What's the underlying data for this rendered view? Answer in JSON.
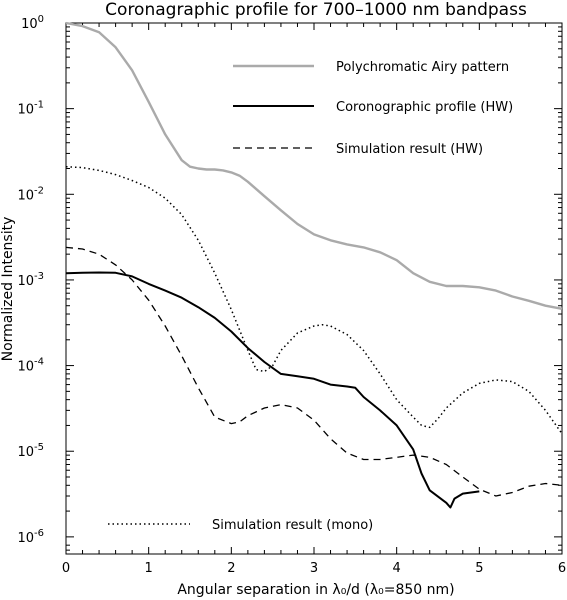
{
  "chart_data": {
    "type": "line",
    "title": "Coronagraphic profile for 700–1000 nm bandpass",
    "xlabel": "Angular separation in λ₀/d (λ₀=850 nm)",
    "ylabel": "Normalized Intensity",
    "xlim": [
      0,
      6
    ],
    "ylim_log10": [
      -6.2,
      0
    ],
    "yscale": "log",
    "grid": false,
    "x_ticks": [
      0,
      1,
      2,
      3,
      4,
      5,
      6
    ],
    "x_tick_labels": [
      "0",
      "1",
      "2",
      "3",
      "4",
      "5",
      "6"
    ],
    "y_ticks_log10": [
      0,
      -1,
      -2,
      -3,
      -4,
      -5,
      -6
    ],
    "y_tick_labels": [
      {
        "base": "10",
        "exp": "0"
      },
      {
        "base": "10",
        "exp": "-1"
      },
      {
        "base": "10",
        "exp": "-2"
      },
      {
        "base": "10",
        "exp": "-3"
      },
      {
        "base": "10",
        "exp": "-4"
      },
      {
        "base": "10",
        "exp": "-5"
      },
      {
        "base": "10",
        "exp": "-6"
      }
    ],
    "series": [
      {
        "name": "Polychromatic Airy pattern",
        "color": "#aaaaaa",
        "style": "solid",
        "legend": "upper-right",
        "x": [
          0,
          0.2,
          0.4,
          0.6,
          0.8,
          1.0,
          1.2,
          1.4,
          1.5,
          1.6,
          1.7,
          1.8,
          1.9,
          2.0,
          2.1,
          2.2,
          2.4,
          2.6,
          2.8,
          3.0,
          3.2,
          3.4,
          3.6,
          3.8,
          4.0,
          4.2,
          4.4,
          4.6,
          4.8,
          5.0,
          5.2,
          5.4,
          5.6,
          5.8,
          6.0
        ],
        "y": [
          1.0,
          0.92,
          0.78,
          0.52,
          0.28,
          0.12,
          0.05,
          0.025,
          0.021,
          0.02,
          0.0195,
          0.0195,
          0.019,
          0.018,
          0.0165,
          0.014,
          0.0095,
          0.0065,
          0.0045,
          0.0034,
          0.0029,
          0.0026,
          0.0024,
          0.0021,
          0.0017,
          0.0012,
          0.00095,
          0.00085,
          0.00085,
          0.00082,
          0.00075,
          0.00064,
          0.00057,
          0.0005,
          0.00046
        ]
      },
      {
        "name": "Coronographic profile (HW)",
        "color": "#000000",
        "style": "solid",
        "legend": "upper-right",
        "x": [
          0,
          0.2,
          0.4,
          0.6,
          0.8,
          1.0,
          1.2,
          1.4,
          1.6,
          1.8,
          2.0,
          2.2,
          2.4,
          2.6,
          2.8,
          3.0,
          3.2,
          3.4,
          3.5,
          3.6,
          3.8,
          4.0,
          4.2,
          4.3,
          4.4,
          4.6,
          4.65,
          4.7,
          4.8,
          5.0
        ],
        "y": [
          0.0012,
          0.00121,
          0.00122,
          0.00121,
          0.0011,
          0.0009,
          0.00075,
          0.00062,
          0.00048,
          0.00036,
          0.00025,
          0.00016,
          0.00011,
          8e-05,
          7.5e-05,
          7e-05,
          6e-05,
          5.7e-05,
          5.5e-05,
          4.3e-05,
          3e-05,
          2e-05,
          1.05e-05,
          5.5e-06,
          3.5e-06,
          2.5e-06,
          2.2e-06,
          2.8e-06,
          3.2e-06,
          3.4e-06
        ]
      },
      {
        "name": "Simulation result (HW)",
        "color": "#000000",
        "style": "dashed",
        "legend": "upper-right",
        "x": [
          0,
          0.2,
          0.4,
          0.6,
          0.8,
          1.0,
          1.2,
          1.4,
          1.6,
          1.8,
          2.0,
          2.1,
          2.2,
          2.4,
          2.6,
          2.8,
          3.0,
          3.2,
          3.4,
          3.6,
          3.8,
          4.0,
          4.2,
          4.4,
          4.6,
          4.8,
          5.0,
          5.2,
          5.4,
          5.6,
          5.8,
          6.0
        ],
        "y": [
          0.0024,
          0.0023,
          0.002,
          0.0015,
          0.001,
          0.00058,
          0.00029,
          0.00013,
          5.5e-05,
          2.5e-05,
          2.1e-05,
          2.2e-05,
          2.6e-05,
          3.2e-05,
          3.5e-05,
          3.2e-05,
          2.3e-05,
          1.4e-05,
          9.5e-06,
          8e-06,
          8e-06,
          8.5e-06,
          9e-06,
          8.5e-06,
          7e-06,
          5e-06,
          3.6e-06,
          3e-06,
          3.3e-06,
          3.9e-06,
          4.2e-06,
          4e-06
        ]
      },
      {
        "name": "Simulation result (mono)",
        "color": "#000000",
        "style": "dotted",
        "legend": "lower-left",
        "x": [
          0,
          0.2,
          0.4,
          0.6,
          0.8,
          1.0,
          1.2,
          1.4,
          1.6,
          1.8,
          2.0,
          2.2,
          2.3,
          2.4,
          2.5,
          2.6,
          2.8,
          3.0,
          3.1,
          3.2,
          3.4,
          3.6,
          3.8,
          4.0,
          4.2,
          4.3,
          4.4,
          4.5,
          4.6,
          4.8,
          5.0,
          5.2,
          5.4,
          5.6,
          5.8,
          6.0
        ],
        "y": [
          0.021,
          0.0205,
          0.019,
          0.017,
          0.0145,
          0.012,
          0.009,
          0.0058,
          0.0029,
          0.0012,
          0.00045,
          0.00015,
          9e-05,
          8.5e-05,
          0.0001,
          0.00015,
          0.00024,
          0.00029,
          0.0003,
          0.00029,
          0.00023,
          0.00015,
          8e-05,
          4e-05,
          2.5e-05,
          2e-05,
          1.9e-05,
          2.4e-05,
          3.2e-05,
          4.8e-05,
          6.2e-05,
          6.8e-05,
          6.5e-05,
          5e-05,
          3e-05,
          1.6e-05
        ]
      }
    ]
  }
}
